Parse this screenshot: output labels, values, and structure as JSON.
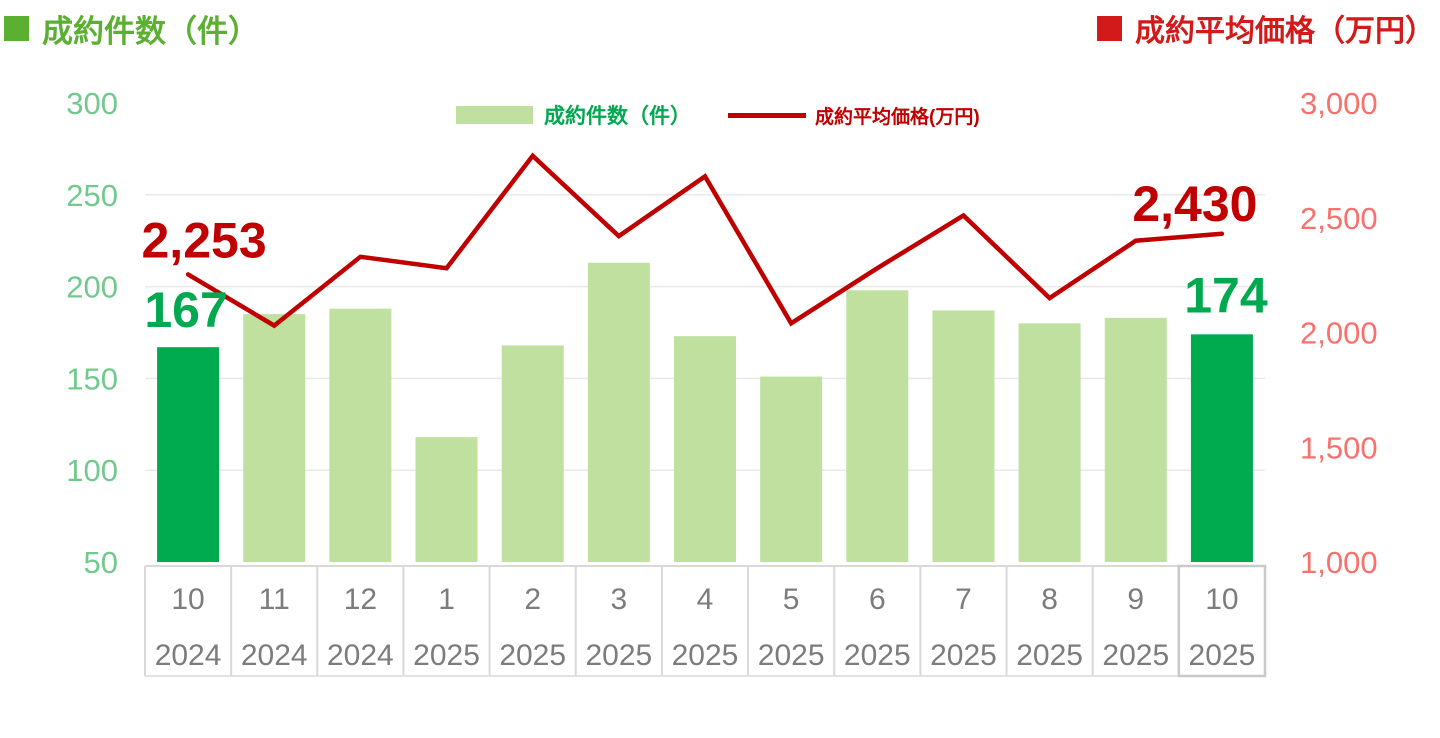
{
  "titles": {
    "left": "成約件数（件）",
    "right": "成約平均価格（万円）"
  },
  "legend": {
    "bars": "成約件数（件）",
    "line": "成約平均価格(万円)"
  },
  "chart_data": {
    "type": "combo-bar-line",
    "categories_month": [
      "10",
      "11",
      "12",
      "1",
      "2",
      "3",
      "4",
      "5",
      "6",
      "7",
      "8",
      "9",
      "10"
    ],
    "categories_year": [
      "2024",
      "2024",
      "2024",
      "2025",
      "2025",
      "2025",
      "2025",
      "2025",
      "2025",
      "2025",
      "2025",
      "2025",
      "2025"
    ],
    "series": [
      {
        "name": "成約件数（件）",
        "chart": "bar",
        "axis": "left",
        "values": [
          167,
          185,
          188,
          118,
          168,
          213,
          173,
          151,
          198,
          187,
          180,
          183,
          174
        ]
      },
      {
        "name": "成約平均価格(万円)",
        "chart": "line",
        "axis": "right",
        "values": [
          2253,
          2030,
          2330,
          2280,
          2770,
          2420,
          2680,
          2040,
          2280,
          2510,
          2150,
          2400,
          2430
        ]
      }
    ],
    "left_axis": {
      "title": "成約件数（件）",
      "min": 50,
      "max": 300,
      "ticks": [
        300,
        250,
        200,
        150,
        100,
        50
      ],
      "tick_labels": [
        "300",
        "250",
        "200",
        "150",
        "100",
        "50"
      ]
    },
    "right_axis": {
      "title": "成約平均価格（万円）",
      "min": 1000,
      "max": 3000,
      "ticks": [
        3000,
        2500,
        2000,
        1500,
        1000
      ],
      "tick_labels": [
        "3,000",
        "2,500",
        "2,000",
        "1,500",
        "1,000"
      ]
    },
    "annotations": [
      {
        "text": "2,253",
        "series": "line",
        "index": 0
      },
      {
        "text": "167",
        "series": "bar",
        "index": 0
      },
      {
        "text": "2,430",
        "series": "line",
        "index": 12
      },
      {
        "text": "174",
        "series": "bar",
        "index": 12
      }
    ],
    "highlighted_bars": [
      0,
      12
    ],
    "legend_position": "top-center",
    "grid": "horizontal"
  },
  "colors": {
    "bar_light": "#C0E09F",
    "bar_highlight": "#00AB50",
    "line": "#C00000",
    "title_left": "#5BAF31",
    "title_right": "#D21A1A",
    "left_ticks": "#72C98E",
    "right_ticks": "#F8716C",
    "grid": "#E9E9E9",
    "table_border": "#D9D9D9",
    "table_border_last": "#C9C9C9",
    "table_text": "#7C7C7C",
    "annotation_green": "#00A94F",
    "annotation_red": "#C00000"
  }
}
